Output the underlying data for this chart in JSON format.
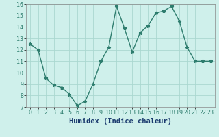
{
  "x": [
    0,
    1,
    2,
    3,
    4,
    5,
    6,
    7,
    8,
    9,
    10,
    11,
    12,
    13,
    14,
    15,
    16,
    17,
    18,
    19,
    20,
    21,
    22,
    23
  ],
  "y": [
    12.5,
    12.0,
    9.5,
    8.9,
    8.7,
    8.1,
    7.1,
    7.5,
    9.0,
    11.0,
    12.2,
    15.8,
    13.9,
    11.8,
    13.5,
    14.1,
    15.2,
    15.4,
    15.8,
    14.5,
    12.2,
    11.0,
    11.0,
    11.0
  ],
  "line_color": "#2e7d6e",
  "marker": "*",
  "markersize": 3.5,
  "linewidth": 1.0,
  "bg_color": "#cff0eb",
  "grid_color": "#aad8d0",
  "xlabel": "Humidex (Indice chaleur)",
  "xlabel_fontsize": 7.5,
  "xlim": [
    -0.5,
    23.5
  ],
  "ylim": [
    7,
    16
  ],
  "yticks": [
    7,
    8,
    9,
    10,
    11,
    12,
    13,
    14,
    15,
    16
  ],
  "xtick_labels": [
    "0",
    "1",
    "2",
    "3",
    "4",
    "5",
    "6",
    "7",
    "8",
    "9",
    "10",
    "11",
    "12",
    "13",
    "14",
    "15",
    "16",
    "17",
    "18",
    "19",
    "20",
    "21",
    "22",
    "23"
  ],
  "tick_fontsize": 6.0,
  "xlabel_color": "#1a3a6e"
}
